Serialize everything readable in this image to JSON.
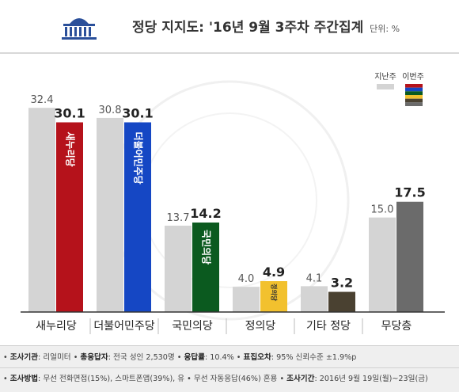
{
  "header": {
    "title": "정당 지지도: '16년 9월 3주차 주간집계",
    "unit": "단위: %"
  },
  "chart_data": {
    "type": "bar",
    "title": "정당 지지도: '16년 9월 3주차 주간집계",
    "unit": "%",
    "ylim": [
      0,
      40
    ],
    "legend_position": "top-right",
    "categories": [
      "새누리당",
      "더불어민주당",
      "국민의당",
      "정의당",
      "기타 정당",
      "무당층"
    ],
    "series": [
      {
        "name": "지난주",
        "values": [
          32.4,
          30.8,
          13.7,
          4.0,
          4.1,
          15.0
        ],
        "color": "#d4d4d4"
      },
      {
        "name": "이번주",
        "values": [
          30.1,
          30.1,
          14.2,
          4.9,
          3.2,
          17.5
        ],
        "colors": [
          "#b5121b",
          "#1547c4",
          "#0b5a1f",
          "#f2c12e",
          "#4a4131",
          "#6b6b6b"
        ]
      }
    ],
    "bar_labels": [
      "새누리당",
      "더불어민주당",
      "국민의당",
      "정의당",
      "",
      ""
    ],
    "grid": false
  },
  "footer": {
    "line1": [
      {
        "key": "조사기관",
        "value": "리얼미터"
      },
      {
        "key": "총응답자",
        "value": "전국 성인 2,530명"
      },
      {
        "key": "응답률",
        "value": "10.4%"
      },
      {
        "key": "표집오차",
        "value": "95% 신뢰수준 ±1.9%p"
      }
    ],
    "line2": [
      {
        "key": "조사방법",
        "value": "무선 전화면접(15%), 스마트폰앱(39%), 유 • 무선 자동응답(46%) 혼용"
      },
      {
        "key": "조사기간",
        "value": "2016년 9월 19일(월)~23일(금)"
      }
    ]
  }
}
